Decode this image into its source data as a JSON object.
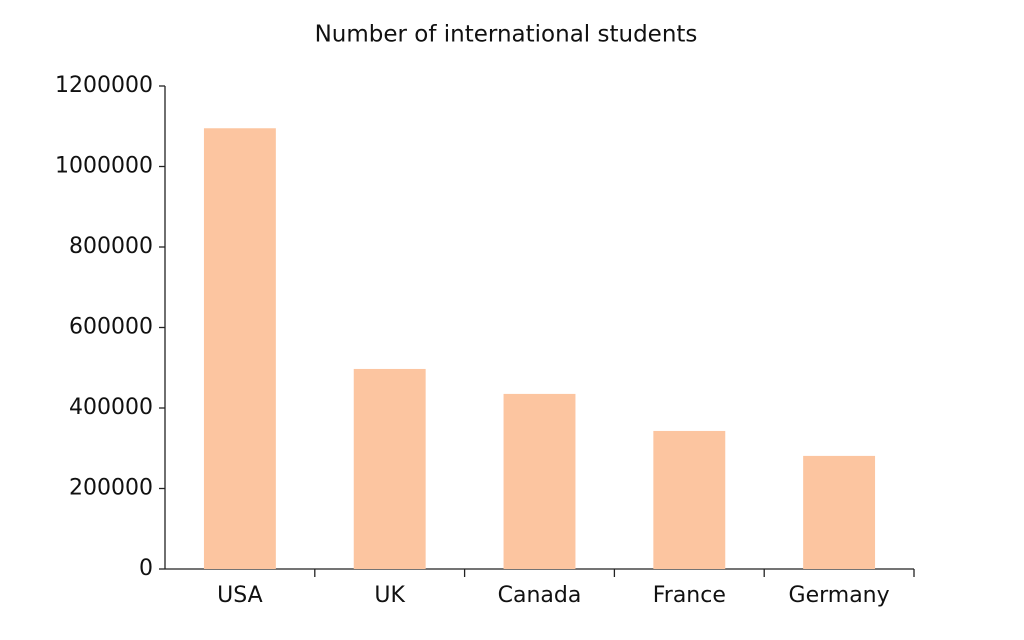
{
  "chart_data": {
    "type": "bar",
    "title": "Number of international students",
    "categories": [
      "USA",
      "UK",
      "Canada",
      "France",
      "Germany"
    ],
    "values": [
      1095000,
      497000,
      435000,
      343000,
      281000
    ],
    "color": "#fcc5a0",
    "ylim": [
      0,
      1200000
    ],
    "yticks": [
      0,
      200000,
      400000,
      600000,
      800000,
      1000000,
      1200000
    ],
    "grid": false
  }
}
